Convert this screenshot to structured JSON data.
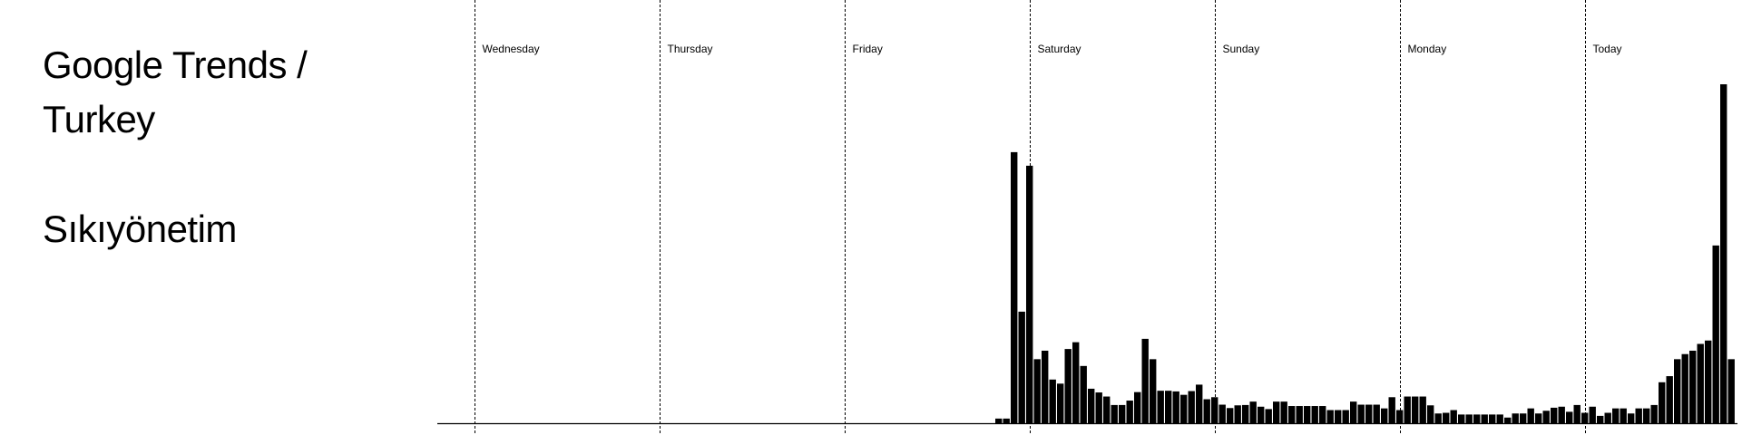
{
  "header": {
    "title": "Google Trends / Turkey",
    "keyword": "Sıkıyönetim"
  },
  "colors": {
    "bar": "#000000",
    "background": "#ffffff",
    "divider": "#000000"
  },
  "chart_data": {
    "type": "bar",
    "grid": "dashed vertical lines at day boundaries",
    "day_labels": [
      "Wednesday",
      "Thursday",
      "Friday",
      "Saturday",
      "Sunday",
      "Monday",
      "Today"
    ],
    "values": [
      0,
      0,
      0,
      0,
      0,
      0,
      0,
      0,
      0,
      0,
      0,
      0,
      0,
      0,
      0,
      0,
      0,
      0,
      0,
      0,
      0,
      0,
      0,
      0,
      0,
      0,
      0,
      0,
      0,
      0,
      0,
      0,
      0,
      0,
      0,
      0,
      0,
      0,
      0,
      0,
      0,
      0,
      0,
      0,
      0,
      0,
      0,
      0,
      0,
      0,
      0,
      0,
      0,
      0,
      0,
      0,
      0,
      0,
      0,
      0,
      0,
      0,
      0,
      0,
      0,
      0,
      1.5,
      1.5,
      80,
      33,
      76,
      19,
      21.5,
      13,
      11.8,
      22,
      24,
      17,
      10.3,
      9.2,
      8,
      5.5,
      5.5,
      6.8,
      9.3,
      25,
      19,
      9.7,
      9.7,
      9.5,
      8.5,
      9.6,
      11.5,
      7.2,
      7.8,
      5.6,
      4.6,
      5.4,
      5.5,
      6.5,
      5.0,
      4.3,
      6.5,
      6.5,
      5.2,
      5.2,
      5.2,
      5.2,
      5.2,
      4.0,
      4.0,
      4.0,
      6.5,
      5.6,
      5.6,
      5.6,
      4.5,
      7.8,
      4.0,
      8.0,
      8.0,
      8.0,
      5.4,
      3.0,
      3.2,
      4.0,
      2.7,
      2.7,
      2.7,
      2.7,
      2.7,
      2.7,
      1.8,
      3.0,
      3.0,
      4.5,
      3.0,
      3.8,
      4.7,
      5.0,
      3.5,
      5.5,
      3.2,
      5.0,
      2.3,
      3.2,
      4.5,
      4.5,
      3.0,
      4.5,
      4.5,
      5.5,
      12.2,
      14,
      19,
      20.5,
      21.5,
      23.5,
      24.5,
      52.5,
      100,
      19
    ]
  }
}
